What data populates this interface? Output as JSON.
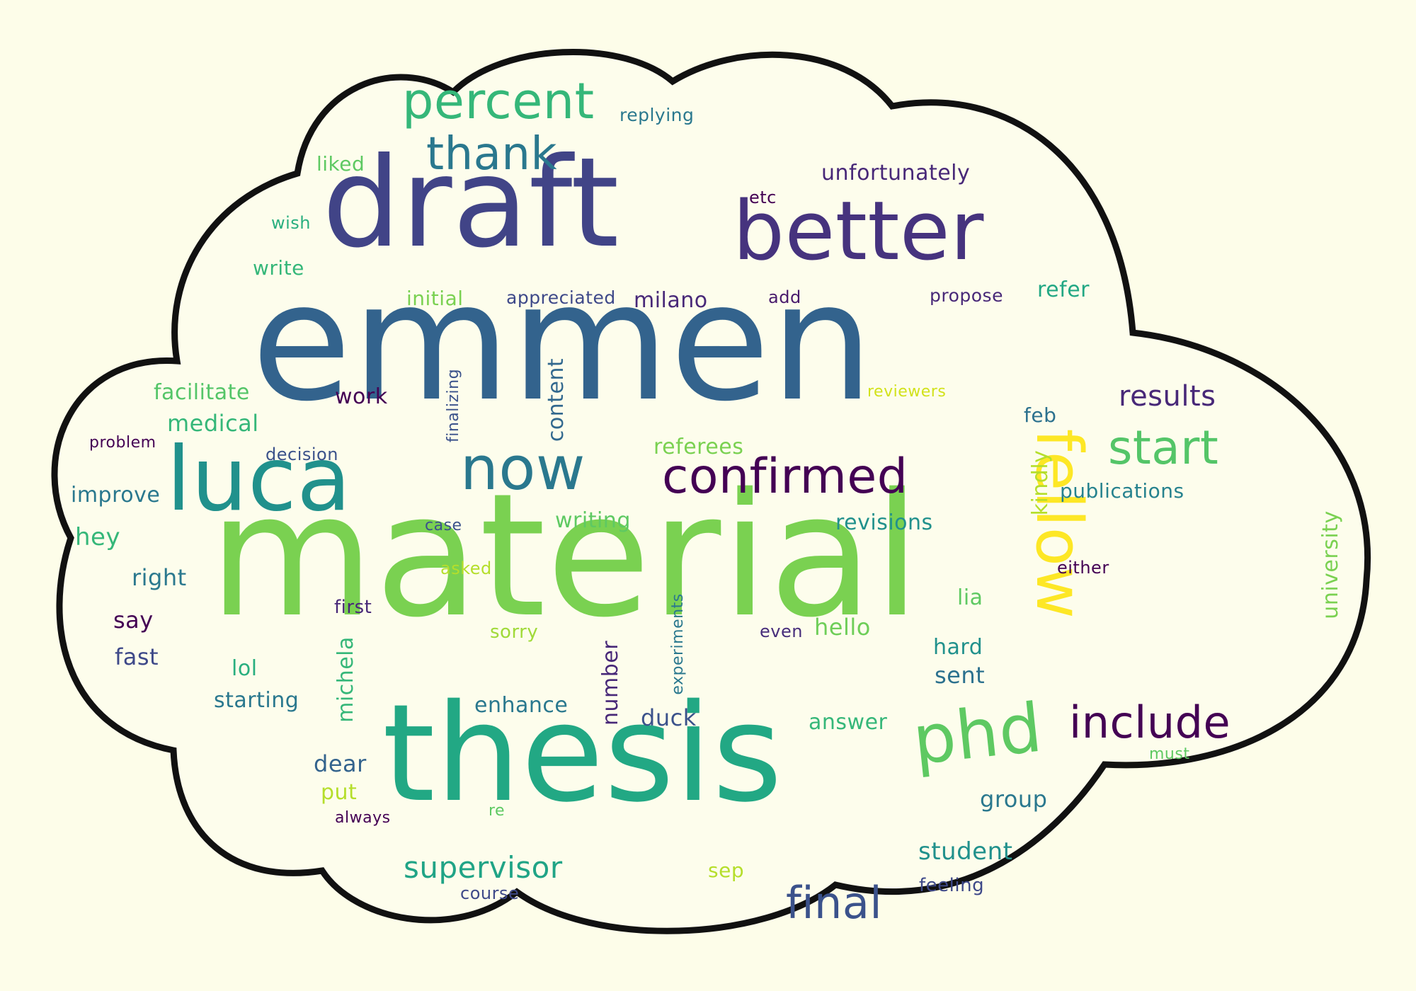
{
  "cloud": {
    "background": "#fdfde9",
    "fill": "#fdfdec",
    "outline": "#111111"
  },
  "words": [
    {
      "text": "material",
      "color": "#7ad151"
    },
    {
      "text": "emmen",
      "color": "#33638d"
    },
    {
      "text": "thesis",
      "color": "#22a884"
    },
    {
      "text": "draft",
      "color": "#414487"
    },
    {
      "text": "better",
      "color": "#46337e"
    },
    {
      "text": "luca",
      "color": "#21918c"
    },
    {
      "text": "now",
      "color": "#2a788e"
    },
    {
      "text": "confirmed",
      "color": "#440154"
    },
    {
      "text": "phd",
      "color": "#5ec962"
    },
    {
      "text": "fellow",
      "color": "#fde725"
    },
    {
      "text": "percent",
      "color": "#35b779"
    },
    {
      "text": "thank",
      "color": "#2a788e"
    },
    {
      "text": "start",
      "color": "#54c568"
    },
    {
      "text": "include",
      "color": "#440154"
    },
    {
      "text": "final",
      "color": "#3b528b"
    },
    {
      "text": "results",
      "color": "#482878"
    },
    {
      "text": "supervisor",
      "color": "#20a486"
    },
    {
      "text": "unfortunately",
      "color": "#482878"
    },
    {
      "text": "replying",
      "color": "#2a788e"
    },
    {
      "text": "liked",
      "color": "#5ec962"
    },
    {
      "text": "etc",
      "color": "#440154"
    },
    {
      "text": "wish",
      "color": "#29af7f"
    },
    {
      "text": "write",
      "color": "#35b779"
    },
    {
      "text": "initial",
      "color": "#7ad151"
    },
    {
      "text": "appreciated",
      "color": "#3e4989"
    },
    {
      "text": "milano",
      "color": "#482878"
    },
    {
      "text": "add",
      "color": "#481a6c"
    },
    {
      "text": "propose",
      "color": "#482878"
    },
    {
      "text": "refer",
      "color": "#22a884"
    },
    {
      "text": "facilitate",
      "color": "#54c568"
    },
    {
      "text": "work",
      "color": "#440154"
    },
    {
      "text": "finalizing",
      "color": "#3b528b"
    },
    {
      "text": "content",
      "color": "#31688e"
    },
    {
      "text": "reviewers",
      "color": "#d2e21b"
    },
    {
      "text": "feb",
      "color": "#2c718e"
    },
    {
      "text": "medical",
      "color": "#35b779"
    },
    {
      "text": "problem",
      "color": "#440154"
    },
    {
      "text": "decision",
      "color": "#3b528b"
    },
    {
      "text": "referees",
      "color": "#7ad151"
    },
    {
      "text": "kindly",
      "color": "#b5de2b"
    },
    {
      "text": "publications",
      "color": "#26828e"
    },
    {
      "text": "improve",
      "color": "#2a788e"
    },
    {
      "text": "case",
      "color": "#3b528b"
    },
    {
      "text": "writing",
      "color": "#5ec962"
    },
    {
      "text": "revisions",
      "color": "#21918c"
    },
    {
      "text": "hey",
      "color": "#35b779"
    },
    {
      "text": "university",
      "color": "#7ad151"
    },
    {
      "text": "asked",
      "color": "#b5de2b"
    },
    {
      "text": "either",
      "color": "#440154"
    },
    {
      "text": "right",
      "color": "#2a788e"
    },
    {
      "text": "first",
      "color": "#482878"
    },
    {
      "text": "lia",
      "color": "#5ec962"
    },
    {
      "text": "say",
      "color": "#440154"
    },
    {
      "text": "sorry",
      "color": "#a0da39"
    },
    {
      "text": "even",
      "color": "#472d7b"
    },
    {
      "text": "hello",
      "color": "#6ece58"
    },
    {
      "text": "fast",
      "color": "#3e4989"
    },
    {
      "text": "michela",
      "color": "#35b779"
    },
    {
      "text": "number",
      "color": "#482878"
    },
    {
      "text": "experiments",
      "color": "#2a788e"
    },
    {
      "text": "hard",
      "color": "#21918c"
    },
    {
      "text": "lol",
      "color": "#29af7f"
    },
    {
      "text": "sent",
      "color": "#2c718e"
    },
    {
      "text": "starting",
      "color": "#2a788e"
    },
    {
      "text": "enhance",
      "color": "#2a788e"
    },
    {
      "text": "duck",
      "color": "#3b528b"
    },
    {
      "text": "answer",
      "color": "#35b779"
    },
    {
      "text": "must",
      "color": "#5ec962"
    },
    {
      "text": "dear",
      "color": "#33638d"
    },
    {
      "text": "put",
      "color": "#b5de2b"
    },
    {
      "text": "always",
      "color": "#440154"
    },
    {
      "text": "re",
      "color": "#5ec962"
    },
    {
      "text": "group",
      "color": "#2a788e"
    },
    {
      "text": "student",
      "color": "#21918c"
    },
    {
      "text": "sep",
      "color": "#b5de2b"
    },
    {
      "text": "course",
      "color": "#3e4989"
    },
    {
      "text": "feeling",
      "color": "#3e4989"
    }
  ]
}
